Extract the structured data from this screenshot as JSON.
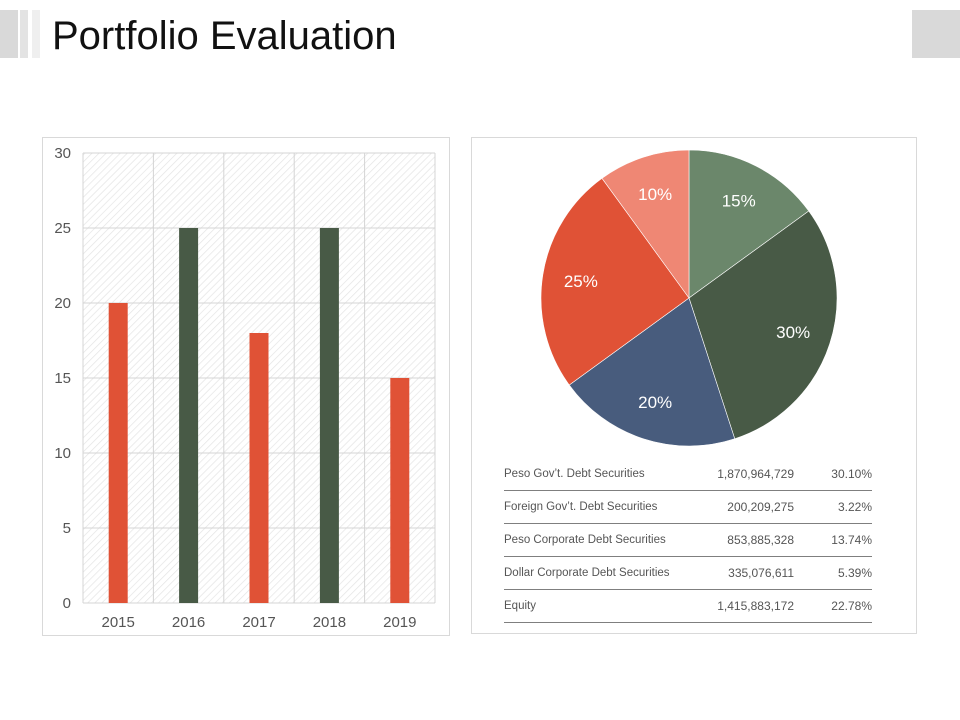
{
  "title": "Portfolio Evaluation",
  "colors": {
    "orange": "#E05236",
    "dark_green": "#485A46",
    "sage": "#6B876B",
    "navy": "#485C7D",
    "salmon": "#EF8774"
  },
  "chart_data": [
    {
      "type": "bar",
      "categories": [
        "2015",
        "2016",
        "2017",
        "2018",
        "2019"
      ],
      "values": [
        20,
        25,
        18,
        25,
        15
      ],
      "bar_colors": [
        "#E05236",
        "#485A46",
        "#E05236",
        "#485A46",
        "#E05236"
      ],
      "y_ticks": [
        "0",
        "5",
        "10",
        "15",
        "20",
        "25",
        "30"
      ],
      "ylim": [
        0,
        30
      ],
      "grid": true,
      "legend": "none",
      "title": "",
      "xlabel": "",
      "ylabel": ""
    },
    {
      "type": "pie",
      "slices": [
        {
          "label": "15%",
          "value": 15,
          "color": "#6B876B"
        },
        {
          "label": "30%",
          "value": 30,
          "color": "#485A46"
        },
        {
          "label": "20%",
          "value": 20,
          "color": "#485C7D"
        },
        {
          "label": "25%",
          "value": 25,
          "color": "#E05236"
        },
        {
          "label": "10%",
          "value": 10,
          "color": "#EF8774"
        }
      ],
      "start": "12 o'clock, clockwise",
      "legend": "none",
      "title": ""
    }
  ],
  "table": {
    "rows": [
      {
        "name": "Peso Gov’t. Debt Securities",
        "amount": "1,870,964,729",
        "percent": "30.10%"
      },
      {
        "name": "Foreign Gov’t. Debt Securities",
        "amount": "200,209,275",
        "percent": "3.22%"
      },
      {
        "name": "Peso Corporate Debt Securities",
        "amount": "853,885,328",
        "percent": "13.74%"
      },
      {
        "name": "Dollar Corporate Debt Securities",
        "amount": "335,076,611",
        "percent": "5.39%"
      },
      {
        "name": "Equity",
        "amount": "1,415,883,172",
        "percent": "22.78%"
      }
    ]
  }
}
